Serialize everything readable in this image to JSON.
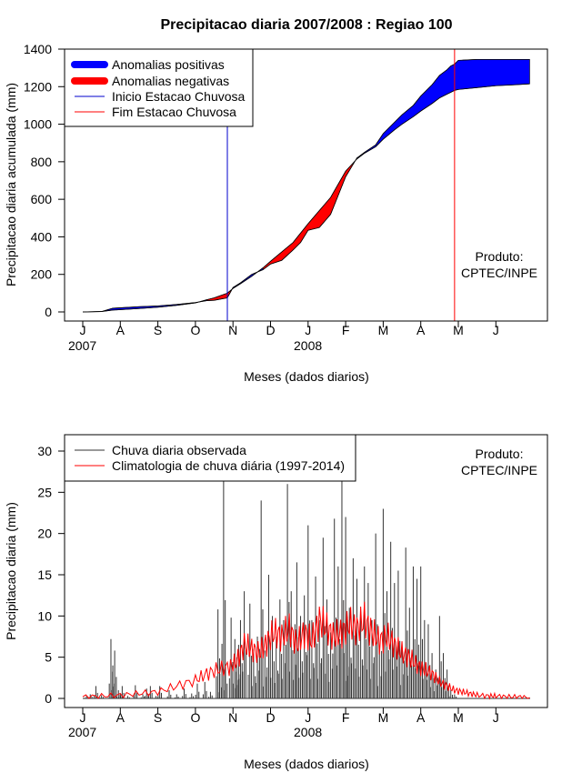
{
  "chart_data": [
    {
      "type": "area",
      "title": "Precipitacao diaria 2007/2008 : Regiao 100",
      "xlabel": "Meses (dados diarios)",
      "ylabel": "Precipitacao diaria acumulada (mm)",
      "ylim": [
        0,
        1400
      ],
      "yticks": [
        "0",
        "200",
        "400",
        "600",
        "800",
        "1000",
        "1200",
        "1400"
      ],
      "month_labels": [
        "J",
        "A",
        "S",
        "O",
        "N",
        "D",
        "J",
        "F",
        "M",
        "A",
        "M",
        "J"
      ],
      "year_labels": [
        "2007",
        "2008"
      ],
      "legend": {
        "position": "top-left",
        "entries": [
          {
            "label": "Anomalias positivas",
            "color": "#0000ff",
            "style": "thick"
          },
          {
            "label": "Anomalias negativas",
            "color": "#ff0000",
            "style": "thick"
          },
          {
            "label": "Inicio Estacao Chuvosa",
            "color": "#0000cc",
            "style": "line"
          },
          {
            "label": "Fim Estacao Chuvosa",
            "color": "#ff0000",
            "style": "line"
          }
        ]
      },
      "annotation": {
        "line1": "Produto:",
        "line2": "CPTEC/INPE"
      },
      "rainy_season_start_month_index": 3.85,
      "rainy_season_end_month_index": 9.9,
      "observed_cumulative": {
        "month_index": [
          0,
          0.5,
          0.8,
          1,
          1.5,
          2,
          2.5,
          3,
          3.3,
          3.5,
          3.85,
          4.0,
          4.2,
          4.5,
          4.8,
          5.0,
          5.3,
          5.6,
          5.8,
          6.0,
          6.3,
          6.6,
          6.8,
          7.0,
          7.3,
          7.5,
          7.8,
          8.0,
          8.3,
          8.5,
          8.8,
          9.0,
          9.3,
          9.5,
          9.7,
          9.8,
          9.9,
          10.0,
          10.5,
          11.0,
          11.5,
          11.9
        ],
        "values": [
          0,
          2,
          20,
          22,
          28,
          32,
          40,
          50,
          60,
          62,
          75,
          130,
          155,
          200,
          225,
          255,
          275,
          330,
          370,
          435,
          450,
          520,
          620,
          720,
          820,
          850,
          890,
          950,
          1010,
          1050,
          1100,
          1150,
          1210,
          1260,
          1290,
          1310,
          1320,
          1340,
          1345,
          1345,
          1345,
          1345
        ]
      },
      "climatology_cumulative": {
        "month_index": [
          0,
          0.5,
          0.8,
          1,
          1.5,
          2,
          2.5,
          3,
          3.3,
          3.5,
          3.85,
          4.0,
          4.2,
          4.5,
          4.8,
          5.0,
          5.3,
          5.6,
          5.8,
          6.0,
          6.3,
          6.6,
          6.8,
          7.0,
          7.3,
          7.5,
          7.8,
          8.0,
          8.3,
          8.5,
          8.8,
          9.0,
          9.3,
          9.5,
          9.7,
          9.8,
          9.9,
          10.0,
          10.5,
          11.0,
          11.5,
          11.9
        ],
        "values": [
          0,
          2,
          10,
          12,
          18,
          25,
          35,
          48,
          65,
          75,
          100,
          125,
          150,
          190,
          235,
          270,
          320,
          370,
          420,
          470,
          540,
          610,
          680,
          750,
          815,
          845,
          880,
          920,
          970,
          1000,
          1040,
          1070,
          1110,
          1140,
          1160,
          1170,
          1180,
          1185,
          1195,
          1205,
          1210,
          1215
        ]
      }
    },
    {
      "type": "bar",
      "xlabel": "Meses (dados diarios)",
      "ylabel": "Precipitacao diaria (mm)",
      "ylim": [
        0,
        30
      ],
      "yticks": [
        "0",
        "5",
        "10",
        "15",
        "20",
        "25",
        "30"
      ],
      "month_labels": [
        "J",
        "A",
        "S",
        "O",
        "N",
        "D",
        "J",
        "F",
        "M",
        "A",
        "M",
        "J"
      ],
      "year_labels": [
        "2007",
        "2008"
      ],
      "legend": {
        "position": "top-left",
        "entries": [
          {
            "label": "Chuva diaria observada",
            "color": "#333333"
          },
          {
            "label": "Climatologia de chuva diária (1997-2014)",
            "color": "#ff0000"
          }
        ]
      },
      "annotation": {
        "line1": "Produto:",
        "line2": "CPTEC/INPE"
      },
      "observed_daily_peaks": {
        "month_index": [
          0.1,
          0.2,
          0.35,
          0.5,
          0.75,
          0.8,
          0.85,
          0.95,
          1.0,
          1.05,
          1.2,
          1.4,
          1.6,
          1.7,
          1.8,
          1.95,
          2.05,
          2.3,
          2.5,
          2.7,
          2.9,
          3.05,
          3.25,
          3.4,
          3.6,
          3.65,
          3.75,
          3.8,
          3.95,
          4.05,
          4.1,
          4.15,
          4.2,
          4.3,
          4.45,
          4.55,
          4.65,
          4.75,
          4.85,
          4.95,
          5.05,
          5.15,
          5.25,
          5.35,
          5.45,
          5.55,
          5.65,
          5.7,
          5.8,
          5.9,
          6.0,
          6.1,
          6.2,
          6.3,
          6.4,
          6.5,
          6.6,
          6.7,
          6.8,
          6.9,
          7.0,
          7.05,
          7.1,
          7.2,
          7.3,
          7.4,
          7.5,
          7.6,
          7.7,
          7.8,
          7.9,
          8.0,
          8.1,
          8.2,
          8.3,
          8.4,
          8.5,
          8.6,
          8.7,
          8.8,
          8.9,
          9.0,
          9.1,
          9.2,
          9.3,
          9.4,
          9.5,
          9.6,
          9.7,
          9.8,
          9.9
        ],
        "values": [
          0.3,
          0.5,
          1.5,
          0.4,
          7.2,
          4.0,
          5.8,
          1.0,
          0.6,
          1.5,
          0.3,
          1.6,
          0.5,
          1.2,
          1.5,
          0.3,
          1.5,
          1.0,
          0.5,
          1.2,
          0.6,
          1.8,
          2.0,
          0.8,
          10.8,
          3.0,
          26.5,
          4.0,
          9.8,
          7.2,
          5.0,
          6.5,
          9.5,
          13.0,
          11.5,
          6.0,
          7.5,
          24.0,
          5.8,
          15.0,
          10.0,
          7.5,
          12.0,
          9.5,
          26.0,
          13.0,
          9.0,
          16.5,
          10.0,
          12.5,
          21.0,
          9.5,
          14.8,
          9.5,
          19.5,
          12.0,
          8.0,
          21.8,
          16.0,
          26.5,
          22.0,
          8.5,
          11.0,
          17.0,
          14.5,
          10.5,
          16.0,
          14.0,
          9.5,
          20.0,
          6.0,
          23.0,
          13.0,
          19.0,
          14.0,
          15.5,
          6.5,
          18.3,
          11.0,
          16.0,
          14.5,
          16.0,
          9.5,
          9.0,
          5.5,
          3.5,
          10.0,
          5.5,
          3.5,
          1.0,
          0.5
        ]
      },
      "climatology_daily": {
        "month_index": [
          0,
          0.5,
          1,
          1.5,
          2,
          2.5,
          3,
          3.3,
          3.6,
          3.9,
          4.1,
          4.3,
          4.5,
          4.7,
          4.9,
          5.1,
          5.3,
          5.5,
          5.7,
          5.9,
          6.1,
          6.3,
          6.5,
          6.7,
          6.9,
          7.1,
          7.3,
          7.5,
          7.7,
          7.9,
          8.1,
          8.3,
          8.5,
          8.7,
          8.9,
          9.1,
          9.3,
          9.5,
          9.7,
          9.9,
          10.1,
          10.3,
          10.5,
          10.8,
          11.0,
          11.3,
          11.6,
          11.9
        ],
        "values": [
          0.2,
          0.3,
          0.4,
          0.6,
          0.8,
          1.5,
          2.2,
          3.0,
          3.5,
          3.8,
          4.5,
          6.5,
          6.0,
          5.5,
          6.8,
          8.0,
          7.5,
          8.5,
          6.5,
          8.0,
          7.0,
          9.5,
          8.5,
          7.5,
          8.0,
          9.0,
          8.5,
          9.5,
          8.0,
          7.0,
          7.5,
          6.5,
          5.5,
          5.0,
          4.0,
          3.5,
          3.0,
          2.0,
          1.5,
          1.0,
          0.8,
          0.6,
          0.4,
          0.3,
          0.3,
          0.2,
          0.2,
          0.1
        ]
      }
    }
  ]
}
